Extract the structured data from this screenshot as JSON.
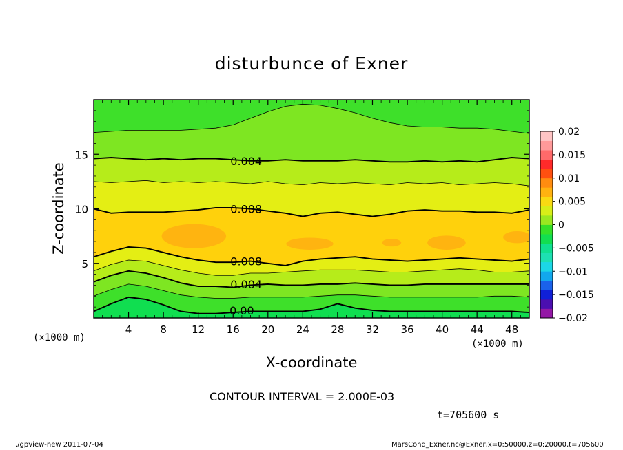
{
  "chart_data": {
    "type": "contour",
    "title": "disturbunce of Exner",
    "xlabel": "X-coordinate",
    "ylabel": "Z-coordinate",
    "x_unit": "(×1000 m)",
    "y_unit": "(×1000 m)",
    "xlim": [
      0,
      50
    ],
    "ylim": [
      0,
      20
    ],
    "x_ticks": [
      4,
      8,
      12,
      16,
      20,
      24,
      28,
      32,
      36,
      40,
      44,
      48
    ],
    "y_ticks": [
      5,
      10,
      15
    ],
    "contour_interval_text": "CONTOUR INTERVAL = 2.000E-03",
    "time_text": "t=705600 s",
    "contour_labels": [
      {
        "text": "0.004",
        "x": 17.5,
        "z": 14.4
      },
      {
        "text": "0.008",
        "x": 17.5,
        "z": 10.0
      },
      {
        "text": "0.008",
        "x": 17.5,
        "z": 5.2
      },
      {
        "text": "0.004",
        "x": 17.5,
        "z": 3.1
      },
      {
        "text": "0.00",
        "x": 17.0,
        "z": 0.7
      }
    ],
    "contour_lines": [
      {
        "level": 0.002,
        "major": false,
        "x": [
          0,
          2,
          4,
          6,
          8,
          10,
          12,
          14,
          16,
          18,
          20,
          22,
          24,
          26,
          28,
          30,
          32,
          34,
          36,
          38,
          40,
          42,
          44,
          46,
          48,
          50
        ],
        "z": [
          17.0,
          17.1,
          17.2,
          17.2,
          17.2,
          17.2,
          17.3,
          17.4,
          17.7,
          18.3,
          18.9,
          19.4,
          19.6,
          19.5,
          19.2,
          18.8,
          18.3,
          17.9,
          17.6,
          17.5,
          17.5,
          17.4,
          17.4,
          17.3,
          17.1,
          16.9
        ]
      },
      {
        "level": 0.004,
        "major": true,
        "x": [
          0,
          2,
          4,
          6,
          8,
          10,
          12,
          14,
          16,
          18,
          20,
          22,
          24,
          26,
          28,
          30,
          32,
          34,
          36,
          38,
          40,
          42,
          44,
          46,
          48,
          50
        ],
        "z": [
          14.6,
          14.7,
          14.6,
          14.5,
          14.6,
          14.5,
          14.6,
          14.6,
          14.5,
          14.4,
          14.4,
          14.5,
          14.4,
          14.4,
          14.4,
          14.5,
          14.4,
          14.3,
          14.3,
          14.4,
          14.3,
          14.4,
          14.3,
          14.5,
          14.7,
          14.6
        ]
      },
      {
        "level": 0.006,
        "major": false,
        "x": [
          0,
          2,
          4,
          6,
          8,
          10,
          12,
          14,
          16,
          18,
          20,
          22,
          24,
          26,
          28,
          30,
          32,
          34,
          36,
          38,
          40,
          42,
          44,
          46,
          48,
          50
        ],
        "z": [
          12.5,
          12.4,
          12.5,
          12.6,
          12.4,
          12.5,
          12.4,
          12.5,
          12.4,
          12.3,
          12.5,
          12.3,
          12.2,
          12.4,
          12.3,
          12.4,
          12.3,
          12.2,
          12.4,
          12.3,
          12.4,
          12.2,
          12.3,
          12.4,
          12.3,
          12.1
        ]
      },
      {
        "level": 0.008,
        "major": true,
        "x": [
          0,
          2,
          4,
          6,
          8,
          10,
          12,
          14,
          16,
          18,
          20,
          22,
          24,
          26,
          28,
          30,
          32,
          34,
          36,
          38,
          40,
          42,
          44,
          46,
          48,
          50
        ],
        "z": [
          10.0,
          9.6,
          9.7,
          9.7,
          9.7,
          9.8,
          9.9,
          10.1,
          10.1,
          10.0,
          9.8,
          9.6,
          9.3,
          9.6,
          9.7,
          9.5,
          9.3,
          9.5,
          9.8,
          9.9,
          9.8,
          9.8,
          9.7,
          9.7,
          9.6,
          9.9
        ]
      },
      {
        "level": 0.008,
        "major": true,
        "x": [
          0,
          2,
          4,
          6,
          8,
          10,
          12,
          14,
          16,
          18,
          20,
          22,
          24,
          26,
          28,
          30,
          32,
          34,
          36,
          38,
          40,
          42,
          44,
          46,
          48,
          50
        ],
        "z": [
          5.6,
          6.1,
          6.5,
          6.4,
          6.0,
          5.6,
          5.3,
          5.1,
          5.1,
          5.2,
          5.0,
          4.8,
          5.2,
          5.4,
          5.5,
          5.6,
          5.4,
          5.3,
          5.2,
          5.3,
          5.4,
          5.5,
          5.4,
          5.3,
          5.2,
          5.4
        ]
      },
      {
        "level": 0.006,
        "major": false,
        "x": [
          0,
          2,
          4,
          6,
          8,
          10,
          12,
          14,
          16,
          18,
          20,
          22,
          24,
          26,
          28,
          30,
          32,
          34,
          36,
          38,
          40,
          42,
          44,
          46,
          48,
          50
        ],
        "z": [
          4.3,
          4.9,
          5.3,
          5.2,
          4.8,
          4.4,
          4.1,
          3.9,
          3.9,
          4.1,
          4.1,
          4.2,
          4.3,
          4.4,
          4.4,
          4.4,
          4.3,
          4.2,
          4.2,
          4.3,
          4.4,
          4.5,
          4.4,
          4.2,
          4.2,
          4.3
        ]
      },
      {
        "level": 0.004,
        "major": true,
        "x": [
          0,
          2,
          4,
          6,
          8,
          10,
          12,
          14,
          16,
          18,
          20,
          22,
          24,
          26,
          28,
          30,
          32,
          34,
          36,
          38,
          40,
          42,
          44,
          46,
          48,
          50
        ],
        "z": [
          3.3,
          3.9,
          4.3,
          4.1,
          3.7,
          3.2,
          2.9,
          2.9,
          2.8,
          3.0,
          3.1,
          3.0,
          3.0,
          3.1,
          3.1,
          3.2,
          3.1,
          3.0,
          3.0,
          3.1,
          3.1,
          3.1,
          3.1,
          3.1,
          3.1,
          3.1
        ]
      },
      {
        "level": 0.002,
        "major": false,
        "x": [
          0,
          2,
          4,
          6,
          8,
          10,
          12,
          14,
          16,
          18,
          20,
          22,
          24,
          26,
          28,
          30,
          32,
          34,
          36,
          38,
          40,
          42,
          44,
          46,
          48,
          50
        ],
        "z": [
          2.0,
          2.6,
          3.1,
          2.9,
          2.5,
          2.1,
          1.9,
          1.8,
          1.8,
          1.9,
          1.9,
          1.9,
          1.9,
          2.0,
          2.1,
          2.1,
          2.0,
          1.9,
          1.9,
          1.9,
          1.9,
          1.9,
          1.9,
          2.0,
          2.0,
          1.9
        ]
      },
      {
        "level": 0.0,
        "major": true,
        "x": [
          0,
          2,
          4,
          6,
          8,
          10,
          12,
          14,
          16,
          18,
          20,
          22,
          24,
          26,
          28,
          30,
          32,
          34,
          36,
          38,
          40,
          42,
          44,
          46,
          48,
          50
        ],
        "z": [
          0.6,
          1.3,
          1.9,
          1.7,
          1.2,
          0.6,
          0.4,
          0.4,
          0.5,
          0.6,
          0.6,
          0.6,
          0.6,
          0.8,
          1.3,
          0.9,
          0.7,
          0.6,
          0.6,
          0.6,
          0.6,
          0.6,
          0.6,
          0.6,
          0.6,
          0.5
        ]
      }
    ],
    "colorbar": {
      "tick_labels": [
        "0.02",
        "0.015",
        "0.01",
        "0.005",
        "0",
        "−0.005",
        "−0.01",
        "−0.015",
        "−0.02"
      ],
      "colors_bottom_to_top": [
        "#9418a6",
        "#4b0fb0",
        "#1020d8",
        "#1a62ea",
        "#12a8ee",
        "#1cd7e6",
        "#1de0b2",
        "#10e090",
        "#12de50",
        "#35e028",
        "#9ae820",
        "#d8ee18",
        "#f9da12",
        "#ffb210",
        "#ff8c10",
        "#ff5010",
        "#ff2a2a",
        "#ff6a6a",
        "#ff9a9a",
        "#ffc4c4"
      ]
    },
    "grid": false
  },
  "footer": {
    "left": "./gpview-new  2011-07-04",
    "right": "MarsCond_Exner.nc@Exner,x=0:50000,z=0:20000,t=705600"
  }
}
